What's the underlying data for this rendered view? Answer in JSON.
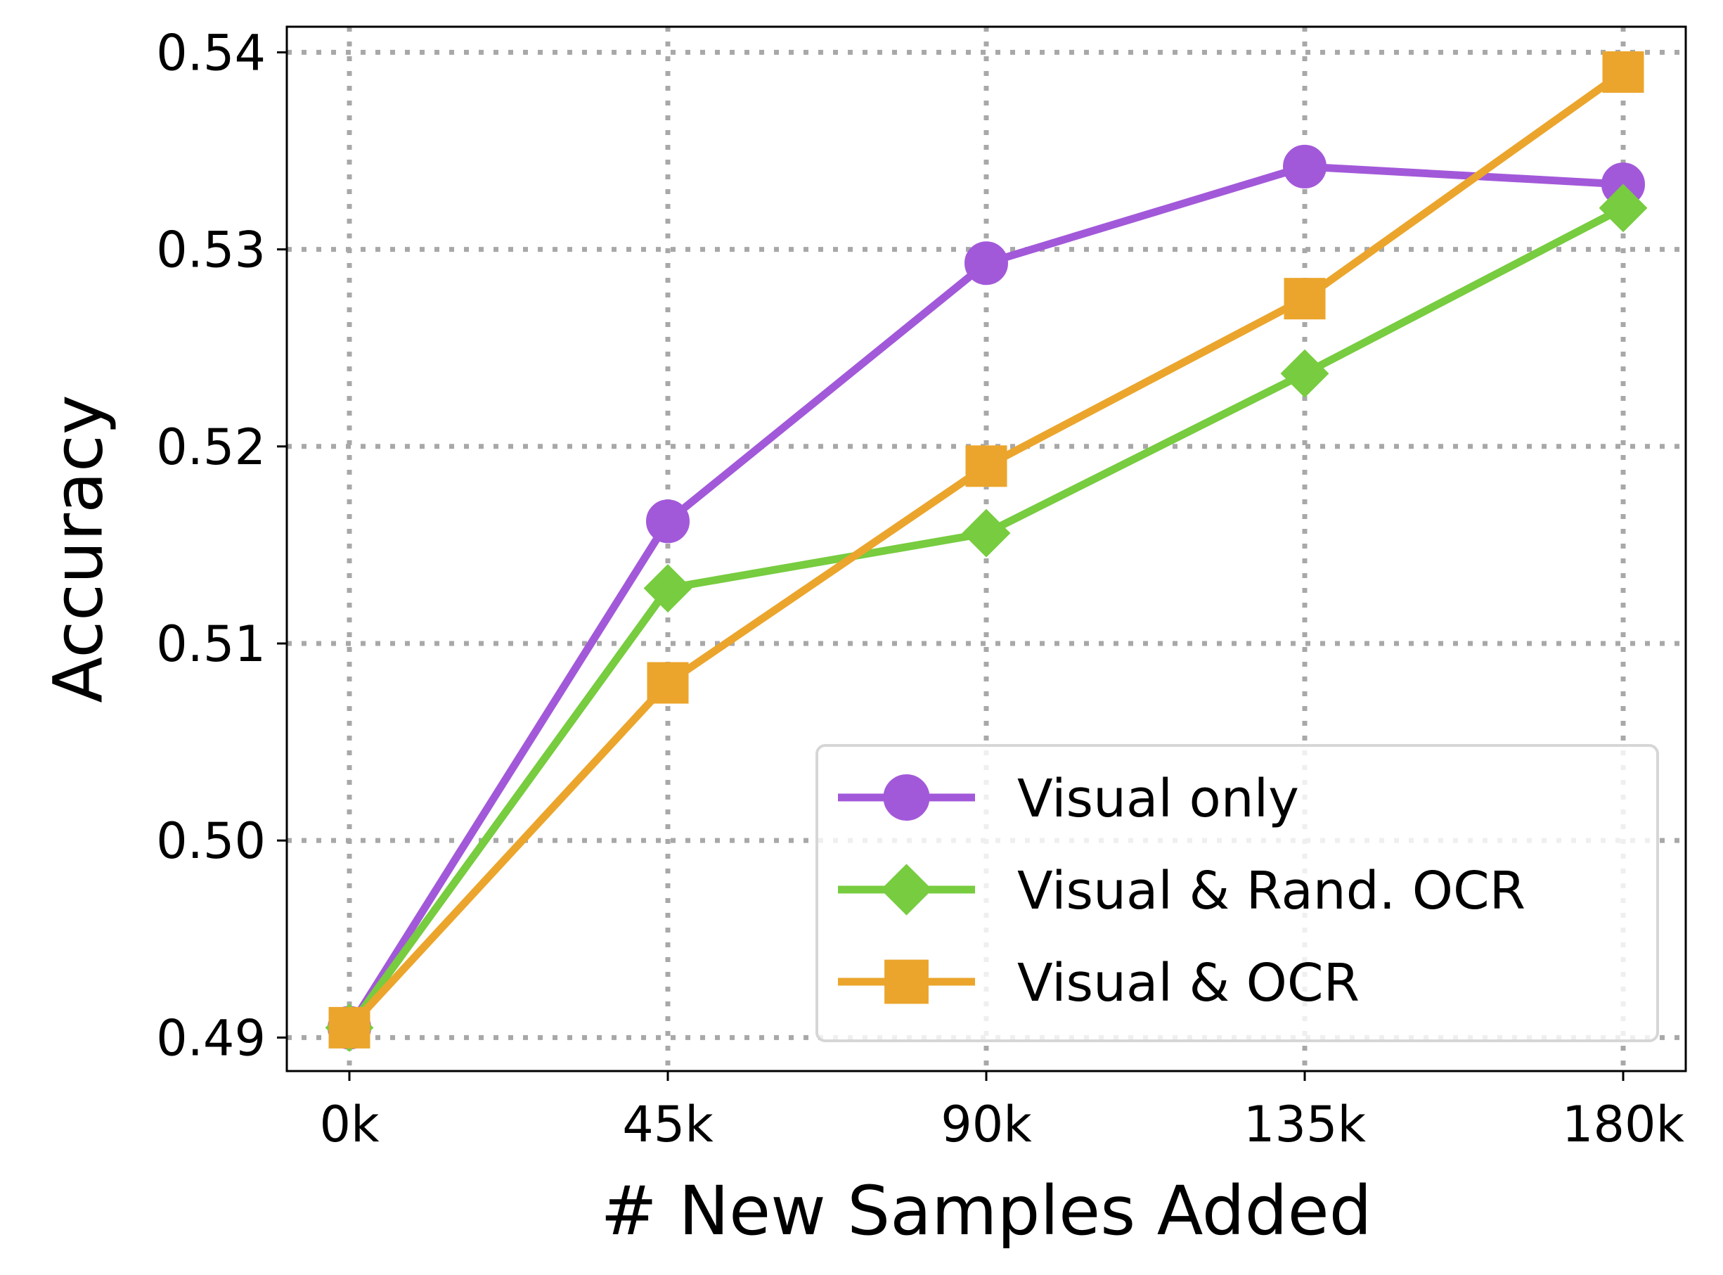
{
  "chart_data": {
    "type": "line",
    "title": "",
    "xlabel": "# New Samples Added",
    "ylabel": "Accuracy",
    "categories": [
      "0k",
      "45k",
      "90k",
      "135k",
      "180k"
    ],
    "yticks": [
      "0.49",
      "0.50",
      "0.51",
      "0.52",
      "0.53",
      "0.54"
    ],
    "ylim": [
      0.4883,
      0.5413
    ],
    "grid": true,
    "legend_position": "lower-right",
    "series": [
      {
        "name": "Visual only",
        "marker": "circle",
        "color": "#a259d9",
        "values": [
          0.4905,
          0.5162,
          0.5293,
          0.5342,
          0.5333
        ]
      },
      {
        "name": "Visual & Rand. OCR",
        "marker": "diamond",
        "color": "#77cc3f",
        "values": [
          0.4905,
          0.5128,
          0.5156,
          0.5237,
          0.5321
        ]
      },
      {
        "name": "Visual & OCR",
        "marker": "square",
        "color": "#eba52c",
        "values": [
          0.4905,
          0.508,
          0.519,
          0.5275,
          0.539
        ]
      }
    ]
  }
}
